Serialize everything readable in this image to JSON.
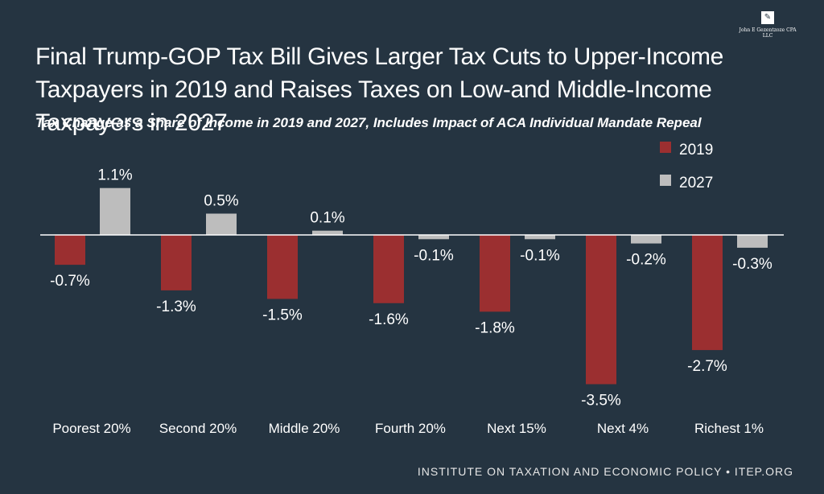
{
  "title": "Final Trump-GOP Tax Bill Gives Larger Tax Cuts to Upper-Income Taxpayers in 2019 and Raises Taxes on Low-and Middle-Income Taxpayers in 2027",
  "subtitle": "Tax Change as a Share of Income in 2019 and 2027, Includes Impact of ACA Individual Mandate Repeal",
  "watermark": "John E Gezentzoze CPA LLC",
  "footer": "INSTITUTE ON TAXATION AND ECONOMIC POLICY • ITEP.ORG",
  "colors": {
    "background": "#253441",
    "series_2019": "#9b2f30",
    "series_2027": "#bdbdbd",
    "axis": "#ffffff"
  },
  "chart_data": {
    "type": "bar",
    "title": "Final Trump-GOP Tax Bill Gives Larger Tax Cuts to Upper-Income Taxpayers in 2019 and Raises Taxes on Low-and Middle-Income Taxpayers in 2027",
    "subtitle": "Tax Change as a Share of Income in 2019 and 2027, Includes Impact of ACA Individual Mandate Repeal",
    "xlabel": "",
    "ylabel": "",
    "ylim": [
      -3.5,
      1.1
    ],
    "grid": false,
    "legend": "top-right",
    "categories": [
      "Poorest 20%",
      "Second 20%",
      "Middle 20%",
      "Fourth 20%",
      "Next 15%",
      "Next 4%",
      "Richest 1%"
    ],
    "series": [
      {
        "name": "2019",
        "values": [
          -0.7,
          -1.3,
          -1.5,
          -1.6,
          -1.8,
          -3.5,
          -2.7
        ],
        "labels": [
          "-0.7%",
          "-1.3%",
          "-1.5%",
          "-1.6%",
          "-1.8%",
          "-3.5%",
          "-2.7%"
        ]
      },
      {
        "name": "2027",
        "values": [
          1.1,
          0.5,
          0.1,
          -0.1,
          -0.1,
          -0.2,
          -0.3
        ],
        "labels": [
          "1.1%",
          "0.5%",
          "0.1%",
          "-0.1%",
          "-0.1%",
          "-0.2%",
          "-0.3%"
        ]
      }
    ]
  }
}
